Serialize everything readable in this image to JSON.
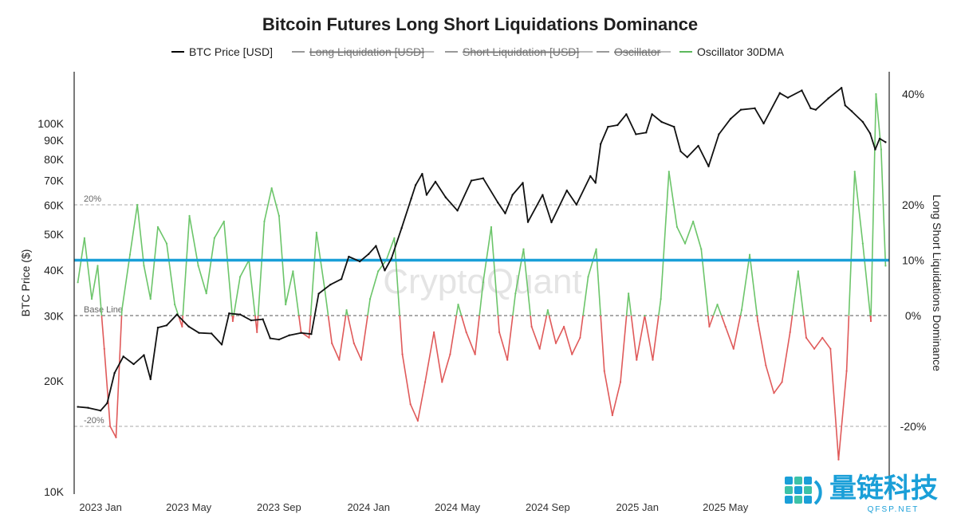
{
  "chart_data": {
    "type": "line",
    "title": "Bitcoin Futures Long Short Liquidations Dominance",
    "legend": {
      "position": "top-center",
      "items": [
        {
          "label": "BTC Price [USD]",
          "color": "#000000",
          "active": true
        },
        {
          "label": "Long Liquidation [USD]",
          "color": "#999999",
          "active": false
        },
        {
          "label": "Short Liquidation [USD]",
          "color": "#999999",
          "active": false
        },
        {
          "label": "Oscillator",
          "color": "#999999",
          "active": false
        },
        {
          "label": "Oscillator 30DMA",
          "color": "#5cb85c",
          "active": true
        }
      ]
    },
    "ylabel_left": "BTC Price ($)",
    "ylabel_right": "Long Short Liquidations Dominance",
    "y_left_scale": "log",
    "y_left_range": [
      10000,
      140000
    ],
    "y_left_ticks": [
      "100K",
      "90K",
      "80K",
      "70K",
      "60K",
      "50K",
      "40K",
      "30K",
      "20K",
      "10K"
    ],
    "y_right_range": [
      -30,
      45
    ],
    "y_right_ticks": [
      "40%",
      "20%",
      "10%",
      "0%",
      "-20%"
    ],
    "x_ticks": [
      "2023 Jan",
      "2023 May",
      "2023 Sep",
      "2024 Jan",
      "2024 May",
      "2024 Sep",
      "2025 Jan",
      "2025 May"
    ],
    "reference_lines": [
      {
        "label": "20%",
        "value": 20
      },
      {
        "label": "Base Line",
        "value": 0
      },
      {
        "label": "-20%",
        "value": -20
      }
    ],
    "highlight_line": {
      "value": 10,
      "color": "#1a9fd8"
    },
    "colors": {
      "positive": "#6cc56a",
      "negative": "#e05a5a",
      "price": "#111111"
    },
    "grid": false,
    "series": [
      {
        "name": "BTC Price [USD]",
        "axis": "left",
        "x": [
          "2022-12-01",
          "2022-12-15",
          "2023-01-01",
          "2023-01-10",
          "2023-01-20",
          "2023-02-01",
          "2023-02-15",
          "2023-03-01",
          "2023-03-10",
          "2023-03-20",
          "2023-04-01",
          "2023-04-15",
          "2023-05-01",
          "2023-05-15",
          "2023-06-01",
          "2023-06-15",
          "2023-06-25",
          "2023-07-10",
          "2023-07-25",
          "2023-08-10",
          "2023-08-20",
          "2023-09-01",
          "2023-09-15",
          "2023-10-01",
          "2023-10-15",
          "2023-10-25",
          "2023-11-10",
          "2023-11-25",
          "2023-12-05",
          "2023-12-20",
          "2024-01-01",
          "2024-01-11",
          "2024-01-23",
          "2024-02-01",
          "2024-02-15",
          "2024-02-28",
          "2024-03-05",
          "2024-03-14",
          "2024-03-20",
          "2024-04-01",
          "2024-04-15",
          "2024-05-01",
          "2024-05-20",
          "2024-06-05",
          "2024-06-25",
          "2024-07-05",
          "2024-07-15",
          "2024-07-29",
          "2024-08-05",
          "2024-08-25",
          "2024-09-06",
          "2024-09-27",
          "2024-10-10",
          "2024-10-29",
          "2024-11-05",
          "2024-11-12",
          "2024-11-22",
          "2024-12-05",
          "2024-12-17",
          "2024-12-30",
          "2025-01-13",
          "2025-01-21",
          "2025-02-03",
          "2025-02-20",
          "2025-03-01",
          "2025-03-10",
          "2025-03-25",
          "2025-04-08",
          "2025-04-22",
          "2025-05-08",
          "2025-05-22",
          "2025-06-10",
          "2025-06-22",
          "2025-07-14",
          "2025-07-25",
          "2025-08-13",
          "2025-08-25",
          "2025-09-01",
          "2025-09-18",
          "2025-10-06",
          "2025-10-11",
          "2025-10-20",
          "2025-11-04",
          "2025-11-14",
          "2025-11-21",
          "2025-11-27",
          "2025-12-05"
        ],
        "values": [
          17000,
          16900,
          16600,
          17400,
          21000,
          23300,
          22200,
          23500,
          20200,
          27900,
          28300,
          30300,
          28100,
          27000,
          26900,
          25100,
          30500,
          30300,
          29200,
          29400,
          26100,
          25900,
          26600,
          27000,
          26800,
          34500,
          36500,
          37800,
          43500,
          42200,
          44200,
          46500,
          39900,
          43000,
          52000,
          62500,
          68000,
          73000,
          64000,
          69500,
          63000,
          58000,
          70000,
          71000,
          61000,
          57000,
          64000,
          69000,
          54000,
          64000,
          53900,
          65800,
          60200,
          72000,
          69000,
          88000,
          98000,
          99000,
          106000,
          93500,
          94500,
          106000,
          101000,
          98000,
          84000,
          81000,
          87000,
          76500,
          93500,
          103000,
          109000,
          110000,
          100000,
          121000,
          117500,
          123000,
          110000,
          109000,
          117000,
          125000,
          112000,
          108000,
          101000,
          94000,
          85000,
          91000,
          89000
        ]
      },
      {
        "name": "Oscillator 30DMA",
        "axis": "right",
        "x": [
          "2022-12-01",
          "2022-12-10",
          "2022-12-20",
          "2022-12-28",
          "2023-01-06",
          "2023-01-14",
          "2023-01-22",
          "2023-01-30",
          "2023-02-10",
          "2023-02-20",
          "2023-03-01",
          "2023-03-10",
          "2023-03-20",
          "2023-04-01",
          "2023-04-12",
          "2023-04-22",
          "2023-05-02",
          "2023-05-14",
          "2023-05-25",
          "2023-06-05",
          "2023-06-18",
          "2023-06-30",
          "2023-07-10",
          "2023-07-22",
          "2023-08-02",
          "2023-08-12",
          "2023-08-22",
          "2023-09-01",
          "2023-09-10",
          "2023-09-20",
          "2023-10-01",
          "2023-10-12",
          "2023-10-22",
          "2023-11-02",
          "2023-11-12",
          "2023-11-22",
          "2023-12-02",
          "2023-12-12",
          "2023-12-22",
          "2024-01-03",
          "2024-01-14",
          "2024-01-25",
          "2024-02-05",
          "2024-02-16",
          "2024-02-27",
          "2024-03-08",
          "2024-03-18",
          "2024-03-30",
          "2024-04-10",
          "2024-04-21",
          "2024-05-02",
          "2024-05-13",
          "2024-05-25",
          "2024-06-05",
          "2024-06-16",
          "2024-06-27",
          "2024-07-08",
          "2024-07-19",
          "2024-07-30",
          "2024-08-10",
          "2024-08-21",
          "2024-09-01",
          "2024-09-12",
          "2024-09-23",
          "2024-10-04",
          "2024-10-15",
          "2024-10-26",
          "2024-11-06",
          "2024-11-17",
          "2024-11-28",
          "2024-12-09",
          "2024-12-20",
          "2024-12-31",
          "2025-01-11",
          "2025-01-22",
          "2025-02-02",
          "2025-02-13",
          "2025-02-24",
          "2025-03-07",
          "2025-03-18",
          "2025-03-29",
          "2025-04-09",
          "2025-04-20",
          "2025-05-01",
          "2025-05-12",
          "2025-05-23",
          "2025-06-03",
          "2025-06-14",
          "2025-06-25",
          "2025-07-06",
          "2025-07-17",
          "2025-07-28",
          "2025-08-08",
          "2025-08-19",
          "2025-08-30",
          "2025-09-10",
          "2025-09-21",
          "2025-10-02",
          "2025-10-13",
          "2025-10-24",
          "2025-11-04",
          "2025-11-15",
          "2025-11-22",
          "2025-11-29",
          "2025-12-05"
        ],
        "values": [
          6,
          14,
          3,
          9,
          -6,
          -20,
          -22,
          1,
          11,
          20,
          9,
          3,
          16,
          13,
          2,
          -2,
          18,
          9,
          4,
          14,
          17,
          -1,
          7,
          10,
          -3,
          17,
          23,
          18,
          2,
          8,
          -3,
          -4,
          15,
          5,
          -5,
          -8,
          1,
          -5,
          -8,
          3,
          8,
          10,
          14,
          -7,
          -16,
          -19,
          -12,
          -3,
          -12,
          -7,
          2,
          -3,
          -7,
          6,
          16,
          -3,
          -8,
          4,
          12,
          -2,
          -6,
          1,
          -5,
          -2,
          -7,
          -4,
          7,
          12,
          -10,
          -18,
          -12,
          4,
          -8,
          0,
          -8,
          3,
          26,
          16,
          13,
          17,
          12,
          -2,
          2,
          -2,
          -6,
          1,
          11,
          -1,
          -9,
          -14,
          -12,
          -3,
          8,
          -4,
          -6,
          -4,
          -6,
          -26,
          -10,
          26,
          13,
          -1,
          40,
          30,
          9
        ]
      }
    ]
  },
  "watermark": "CryptoQuant",
  "logo": {
    "text": "量链科技",
    "subtext": "QFSP.NET"
  }
}
